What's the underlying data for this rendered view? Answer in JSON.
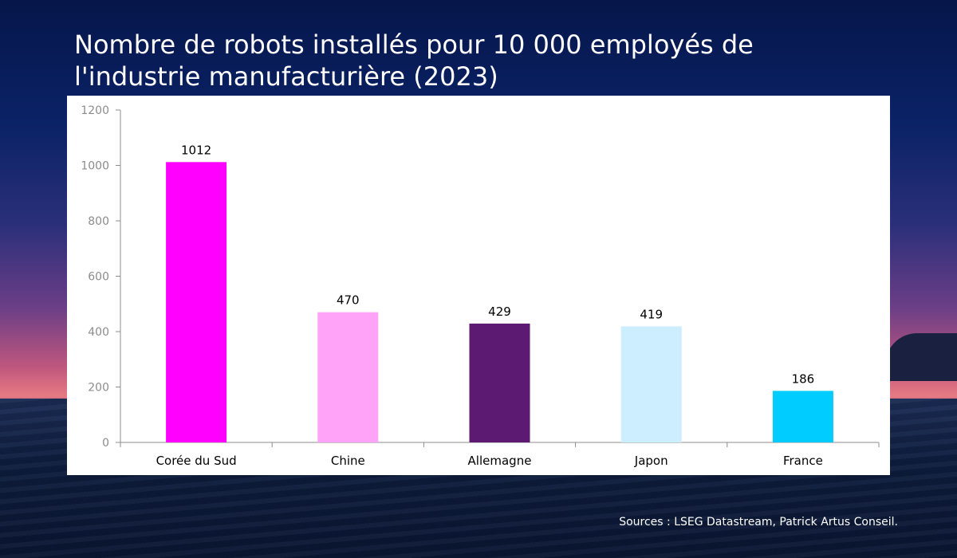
{
  "title": "Nombre de robots installés pour 10 000 employés de l'industrie manufacturière (2023)",
  "source": "Sources : LSEG Datastream, Patrick Artus Conseil.",
  "chart_data": {
    "type": "bar",
    "title": "Nombre de robots installés pour 10 000 employés de l'industrie manufacturière (2023)",
    "xlabel": "",
    "ylabel": "",
    "categories": [
      "Corée du Sud",
      "Chine",
      "Allemagne",
      "Japon",
      "France"
    ],
    "values": [
      1012,
      470,
      429,
      419,
      186
    ],
    "colors": [
      "#ff00ff",
      "#ffa3f8",
      "#5c1a72",
      "#cdeeff",
      "#00ccff"
    ],
    "ylim": [
      0,
      1200
    ],
    "yticks": [
      0,
      200,
      400,
      600,
      800,
      1000,
      1200
    ],
    "data_labels": [
      "1012",
      "470",
      "429",
      "419",
      "186"
    ],
    "grid": false,
    "legend": "none"
  }
}
